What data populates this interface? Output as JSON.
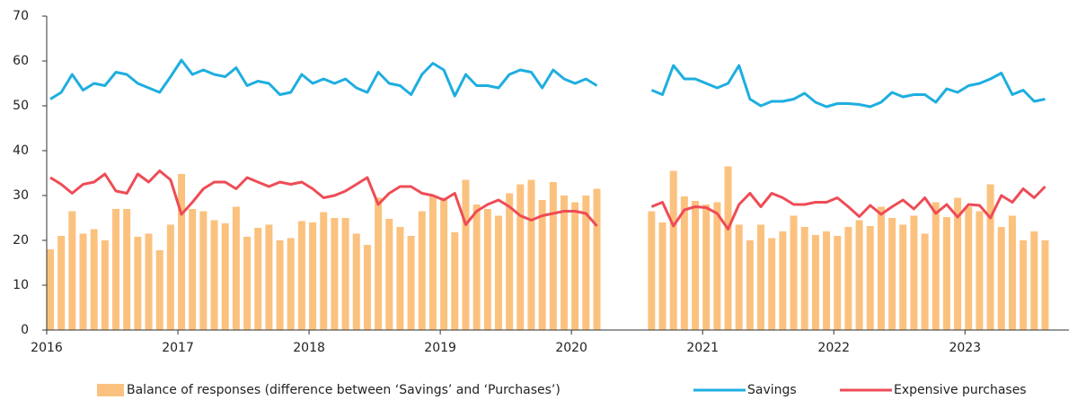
{
  "chart_data": {
    "type": "bar",
    "categories": [
      "2016",
      null,
      null,
      null,
      null,
      null,
      null,
      null,
      null,
      null,
      null,
      null,
      "2017",
      null,
      null,
      null,
      null,
      null,
      null,
      null,
      null,
      null,
      null,
      null,
      "2018",
      null,
      null,
      null,
      null,
      null,
      null,
      null,
      null,
      null,
      null,
      null,
      "2019",
      null,
      null,
      null,
      null,
      null,
      null,
      null,
      null,
      null,
      null,
      null,
      "2020",
      null,
      null,
      null,
      null,
      null,
      null,
      null,
      null,
      null,
      null,
      null,
      "2021",
      null,
      null,
      null,
      null,
      null,
      null,
      null,
      null,
      null,
      null,
      null,
      "2022",
      null,
      null,
      null,
      null,
      null,
      null,
      null,
      null,
      null,
      null,
      null,
      "2023",
      null,
      null,
      null,
      null,
      null,
      null,
      null
    ],
    "series": [
      {
        "name": "Balance of responses (difference between ‘Savings’ and ‘Purchases’)",
        "type": "bar",
        "color": "#fbc27f",
        "values": [
          18,
          21,
          26.5,
          21.5,
          22.5,
          20,
          27,
          27,
          20.8,
          21.5,
          17.8,
          23.5,
          34.8,
          27,
          26.5,
          24.5,
          23.8,
          27.5,
          20.8,
          22.8,
          23.5,
          20,
          20.5,
          24.3,
          24,
          26.3,
          25,
          25,
          21.5,
          19,
          29.5,
          24.8,
          23,
          21,
          26.5,
          29.8,
          29.5,
          21.8,
          33.5,
          28,
          27,
          25.5,
          30.5,
          32.5,
          33.5,
          29,
          33,
          30,
          28.5,
          30,
          31.5,
          null,
          null,
          null,
          null,
          26.5,
          24,
          35.5,
          29.8,
          28.8,
          28,
          28.5,
          36.5,
          23.5,
          20,
          23.5,
          20.5,
          22,
          25.5,
          23,
          21.2,
          22,
          21,
          23,
          24.5,
          23.2,
          27.5,
          25,
          23.5,
          25.5,
          21.5,
          28.5,
          25.2,
          29.5,
          27.5,
          26.5,
          32.5,
          23,
          25.5,
          20,
          22,
          20
        ]
      },
      {
        "name": "Savings",
        "type": "line",
        "color": "#1eaee0",
        "values": [
          51.5,
          53,
          57,
          53.5,
          55,
          54.5,
          57.5,
          57,
          55,
          54,
          53,
          56.5,
          60.2,
          57,
          58,
          57,
          56.5,
          58.5,
          54.5,
          55.5,
          55,
          52.5,
          53,
          57,
          55,
          56,
          55,
          56,
          54,
          53,
          57.5,
          55,
          54.5,
          52.5,
          57,
          59.5,
          58,
          52.2,
          57,
          54.5,
          54.5,
          54,
          57,
          58,
          57.5,
          54,
          58,
          56,
          55,
          56,
          54.5,
          null,
          null,
          null,
          null,
          53.5,
          52.5,
          59,
          56,
          56,
          55,
          54,
          55,
          59,
          51.5,
          50,
          51,
          51,
          51.5,
          52.8,
          50.8,
          49.8,
          50.5,
          50.5,
          50.3,
          49.8,
          50.8,
          53,
          52,
          52.5,
          52.5,
          50.8,
          53.8,
          53,
          54.5,
          55,
          56,
          57.3,
          52.5,
          53.5,
          51,
          51.5
        ]
      },
      {
        "name": "Expensive purchases",
        "type": "line",
        "color": "#ee4c56",
        "values": [
          34,
          32.5,
          30.5,
          32.5,
          33,
          34.8,
          31,
          30.5,
          34.8,
          33,
          35.5,
          33.5,
          25.8,
          28.5,
          31.5,
          33,
          33,
          31.5,
          34,
          33,
          32,
          33,
          32.5,
          33,
          31.5,
          29.5,
          30,
          31,
          32.5,
          34,
          28,
          30.5,
          32,
          32,
          30.5,
          30,
          29,
          30.5,
          23.5,
          26.5,
          28,
          29,
          27.5,
          25.5,
          24.5,
          25.5,
          26,
          26.5,
          26.5,
          26,
          23.2,
          null,
          null,
          null,
          null,
          27.5,
          28.5,
          23.2,
          26.8,
          27.5,
          27.3,
          26,
          22.5,
          28,
          30.5,
          27.5,
          30.5,
          29.5,
          28,
          28,
          28.5,
          28.5,
          29.5,
          27.5,
          25.3,
          27.8,
          25.8,
          27.5,
          29,
          27,
          29.5,
          26,
          28,
          25.2,
          28,
          27.8,
          25,
          30,
          28.5,
          31.5,
          29.5,
          32
        ]
      }
    ],
    "ylim": [
      0,
      70
    ],
    "yticks": [
      0,
      10,
      20,
      30,
      40,
      50,
      60,
      70
    ],
    "grid": false,
    "legend": "bottom"
  }
}
